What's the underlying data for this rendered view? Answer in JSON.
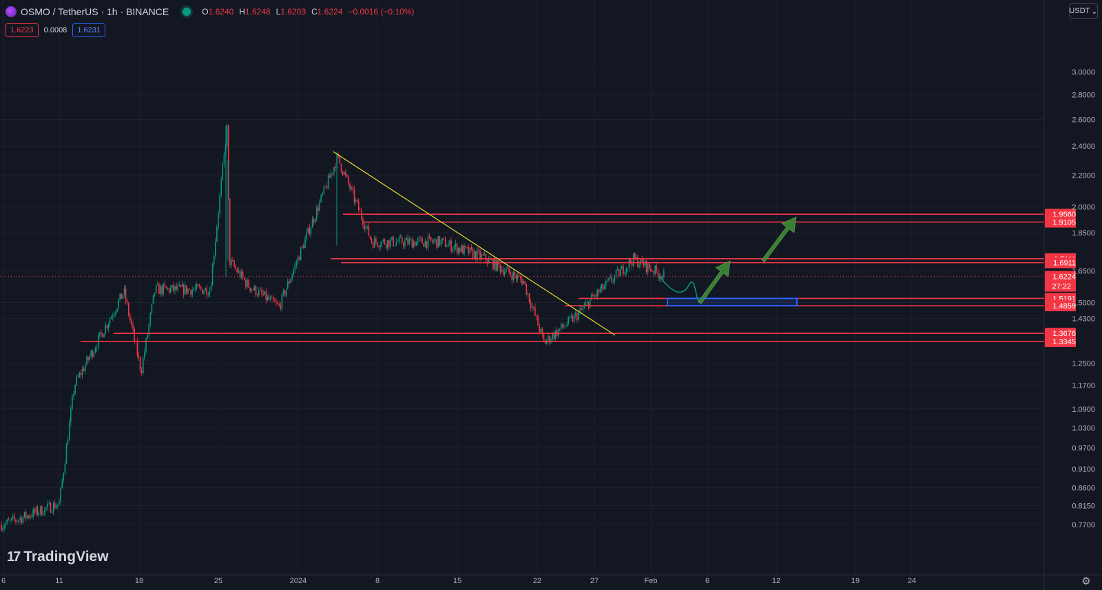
{
  "header": {
    "symbol_title": "OSMO / TetherUS · 1h · BINANCE",
    "ohlc": [
      {
        "key": "O",
        "value": "1.6240"
      },
      {
        "key": "H",
        "value": "1.6248"
      },
      {
        "key": "L",
        "value": "1.6203"
      },
      {
        "key": "C",
        "value": "1.6224"
      }
    ],
    "change": "−0.0016 (−0.10%)"
  },
  "trade": {
    "sell": "1.6223",
    "spread": "0.0008",
    "buy": "1.6231"
  },
  "currency": "USDT",
  "brand": {
    "logo_mark": "17",
    "name": "TradingView"
  },
  "colors": {
    "bg": "#131722",
    "up": "#089981",
    "down": "#f23645",
    "level_line": "#f23645",
    "trendline": "#f0e130",
    "zone": "#2962ff",
    "arrow": "#3d8b37"
  },
  "chart_data": {
    "type": "candlestick",
    "y_scale": "log",
    "y_ticks": [
      "3.0000",
      "2.8000",
      "2.6000",
      "2.4000",
      "2.2000",
      "2.0000",
      "1.8500",
      "1.6500",
      "1.5000",
      "1.4300",
      "1.2500",
      "1.1700",
      "1.0900",
      "1.0300",
      "0.9700",
      "0.9100",
      "0.8600",
      "0.8150",
      "0.7700"
    ],
    "x_ticks": [
      "6",
      "11",
      "18",
      "25",
      "2024",
      "8",
      "15",
      "22",
      "27",
      "Feb",
      "6",
      "12",
      "19",
      "24"
    ],
    "last_price": "1.6224",
    "countdown": "27:22",
    "levels": [
      "1.9560",
      "1.9105",
      "1.7111",
      "1.6911",
      "1.5191",
      "1.4859",
      "1.3676",
      "1.3345"
    ],
    "path": [
      [
        "6",
        0.77
      ],
      [
        "11",
        0.82
      ],
      [
        "11",
        1.17
      ],
      [
        "18",
        1.55
      ],
      [
        "18",
        1.22
      ],
      [
        "18",
        1.56
      ],
      [
        "25",
        1.56
      ],
      [
        "25",
        2.55
      ],
      [
        "25",
        1.7
      ],
      [
        "25",
        1.58
      ],
      [
        "2024",
        1.48
      ],
      [
        "2024",
        2.32
      ],
      [
        "8",
        1.8
      ],
      [
        "15",
        1.8
      ],
      [
        "15",
        1.72
      ],
      [
        "22",
        1.6
      ],
      [
        "22",
        1.33
      ],
      [
        "27",
        1.45
      ],
      [
        "27",
        1.52
      ],
      [
        "Feb",
        1.71
      ],
      [
        "Feb",
        1.6224
      ]
    ]
  }
}
